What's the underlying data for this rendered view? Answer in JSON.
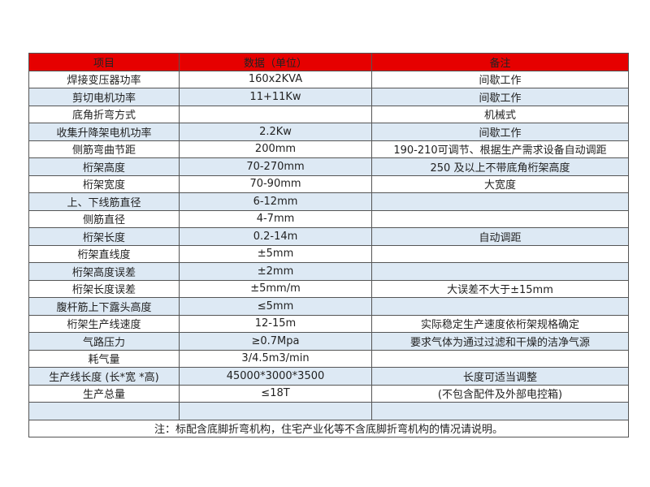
{
  "colors": {
    "header": "#e60000",
    "alt_row": "#dde9f4"
  },
  "table": {
    "headers": [
      "项目",
      "数据（单位）",
      "备注"
    ],
    "rows": [
      [
        "焊接变压器功率",
        "160x2KVA",
        "间歇工作"
      ],
      [
        "剪切电机功率",
        "11+11Kw",
        "间歇工作"
      ],
      [
        "底角折弯方式",
        "",
        "机械式"
      ],
      [
        "收集升降架电机功率",
        "2.2Kw",
        "间歇工作"
      ],
      [
        "侧筋弯曲节距",
        "200mm",
        "190-210可调节、根据生产需求设备自动调距"
      ],
      [
        "桁架高度",
        "70-270mm",
        "250 及以上不带底角桁架高度"
      ],
      [
        "桁架宽度",
        "70-90mm",
        "大宽度"
      ],
      [
        "上、下线筋直径",
        "6-12mm",
        ""
      ],
      [
        "侧筋直径",
        "4-7mm",
        ""
      ],
      [
        "桁架长度",
        "0.2-14m",
        "自动调距"
      ],
      [
        "桁架直线度",
        "±5mm",
        ""
      ],
      [
        "桁架高度误差",
        "±2mm",
        ""
      ],
      [
        "桁架长度误差",
        "±5mm/m",
        "大误差不大于±15mm"
      ],
      [
        "腹杆筋上下露头高度",
        "≤5mm",
        ""
      ],
      [
        "桁架生产线速度",
        "12-15m",
        "实际稳定生产速度依桁架规格确定"
      ],
      [
        "气路压力",
        "≥0.7Mpa",
        "要求气体为通过过滤和干燥的洁净气源"
      ],
      [
        "耗气量",
        "3/4.5m3/min",
        ""
      ],
      [
        "生产线长度 (长*宽 *高)",
        "45000*3000*3500",
        "长度可适当调整"
      ],
      [
        "生产总量",
        "≤18T",
        "(不包含配件及外部电控箱)"
      ],
      [
        "",
        "",
        ""
      ]
    ],
    "note": "注：标配含底脚折弯机构，住宅产业化等不含底脚折弯机构的情况请说明。"
  }
}
